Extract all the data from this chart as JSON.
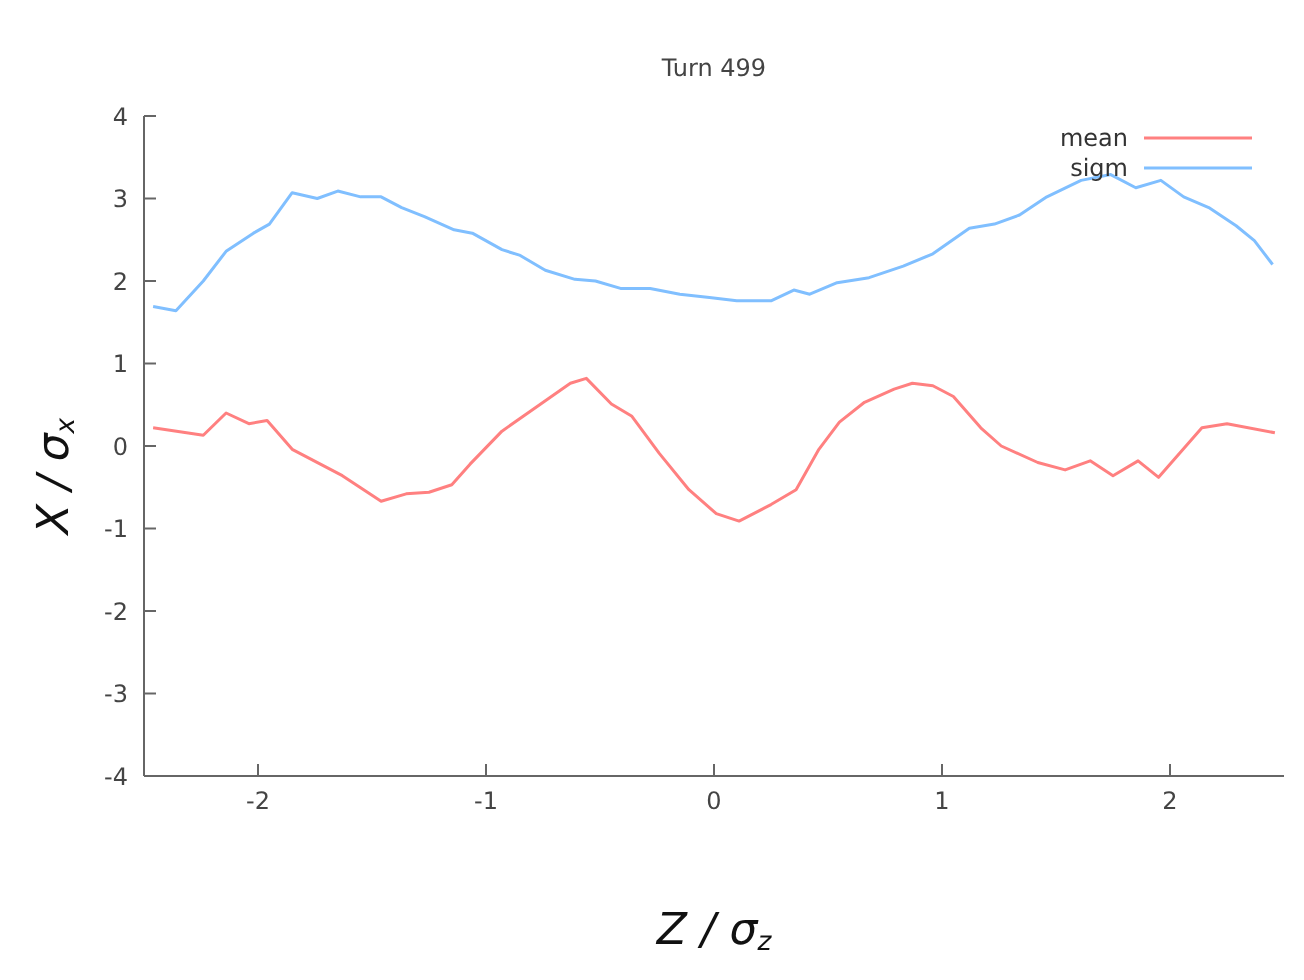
{
  "chart_data": {
    "type": "line",
    "title": "Turn 499",
    "xlabel": "Z / σ$_{z}$",
    "ylabel": "X / σ$_{x}$",
    "xlim": [
      -2.5,
      2.5
    ],
    "xticks": [
      -2,
      -1,
      0,
      1,
      2
    ],
    "ylim": [
      -4,
      4
    ],
    "yticks": [
      -4,
      -3,
      -2,
      -1,
      0,
      1,
      2,
      3,
      4
    ],
    "grid": false,
    "legend": "top right",
    "marker": "none",
    "line_style": "solid",
    "series": [
      {
        "name": "mean",
        "color": "#ff8080",
        "x": [
          -2.46,
          -2.24,
          -2.14,
          -2.04,
          -1.96,
          -1.85,
          -1.63,
          -1.46,
          -1.35,
          -1.25,
          -1.15,
          -1.07,
          -0.93,
          -0.76,
          -0.63,
          -0.56,
          -0.45,
          -0.36,
          -0.24,
          -0.11,
          0.01,
          0.11,
          0.25,
          0.36,
          0.46,
          0.55,
          0.66,
          0.79,
          0.87,
          0.96,
          1.05,
          1.17,
          1.26,
          1.42,
          1.54,
          1.65,
          1.75,
          1.86,
          1.95,
          2.14,
          2.25,
          2.46
        ],
        "values": [
          0.22,
          0.13,
          0.4,
          0.27,
          0.31,
          -0.04,
          -0.36,
          -0.67,
          -0.58,
          -0.56,
          -0.47,
          -0.22,
          0.18,
          0.51,
          0.76,
          0.82,
          0.51,
          0.36,
          -0.09,
          -0.53,
          -0.82,
          -0.91,
          -0.71,
          -0.53,
          -0.04,
          0.29,
          0.53,
          0.69,
          0.76,
          0.73,
          0.6,
          0.22,
          0,
          -0.2,
          -0.29,
          -0.18,
          -0.36,
          -0.18,
          -0.38,
          0.22,
          0.27,
          0.16
        ]
      },
      {
        "name": "sigm",
        "color": "#80bfff",
        "x": [
          -2.46,
          -2.36,
          -2.24,
          -2.14,
          -2.02,
          -1.95,
          -1.85,
          -1.74,
          -1.65,
          -1.55,
          -1.46,
          -1.37,
          -1.27,
          -1.14,
          -1.06,
          -0.93,
          -0.85,
          -0.74,
          -0.61,
          -0.52,
          -0.41,
          -0.28,
          -0.15,
          -0.02,
          0.1,
          0.25,
          0.35,
          0.42,
          0.54,
          0.68,
          0.83,
          0.96,
          1.12,
          1.23,
          1.34,
          1.46,
          1.61,
          1.74,
          1.85,
          1.96,
          2.06,
          2.17,
          2.29,
          2.37,
          2.45
        ],
        "values": [
          1.69,
          1.64,
          2.0,
          2.36,
          2.58,
          2.69,
          3.07,
          3.0,
          3.09,
          3.02,
          3.02,
          2.89,
          2.78,
          2.62,
          2.58,
          2.38,
          2.31,
          2.13,
          2.02,
          2.0,
          1.91,
          1.91,
          1.84,
          1.8,
          1.76,
          1.76,
          1.89,
          1.84,
          1.98,
          2.04,
          2.18,
          2.33,
          2.64,
          2.69,
          2.8,
          3.02,
          3.22,
          3.29,
          3.13,
          3.22,
          3.02,
          2.89,
          2.67,
          2.49,
          2.2
        ]
      }
    ]
  }
}
